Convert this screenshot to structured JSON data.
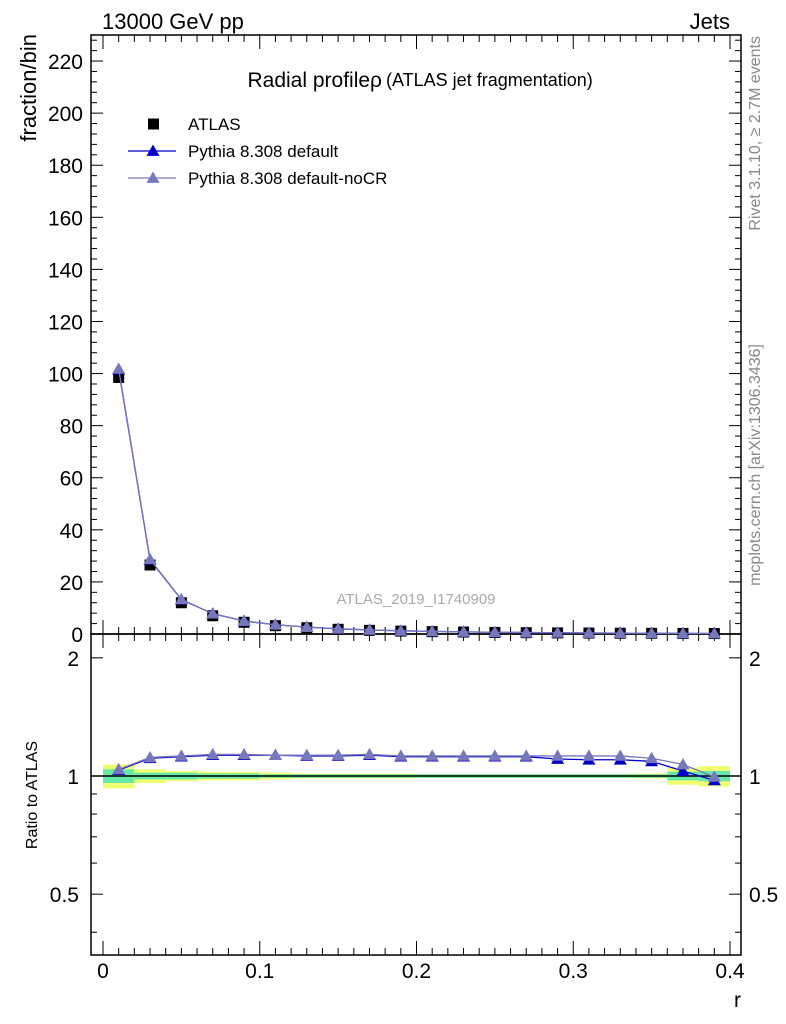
{
  "header": {
    "left": "13000 GeV pp",
    "right": "Jets"
  },
  "side_labels": {
    "rivet": "Rivet 3.1.10, ≥ 2.7M events",
    "mcplots": "mcplots.cern.ch [arXiv:1306.3436]"
  },
  "chart_data": [
    {
      "type": "scatter",
      "panel": "main",
      "title": "Radial profileρ",
      "subtitle": "(ATLAS jet fragmentation)",
      "watermark": "ATLAS_2019_I1740909",
      "xlabel": "r",
      "ylabel": "fraction/bin",
      "xlim": [
        0,
        0.4
      ],
      "ylim": [
        0,
        230
      ],
      "yticks": [
        0,
        20,
        40,
        60,
        80,
        100,
        120,
        140,
        160,
        180,
        200,
        220
      ],
      "xticks": [
        0,
        0.1,
        0.2,
        0.3,
        0.4
      ],
      "legend_position": "top-left",
      "x": [
        0.01,
        0.03,
        0.05,
        0.07,
        0.09,
        0.11,
        0.13,
        0.15,
        0.17,
        0.19,
        0.21,
        0.23,
        0.25,
        0.27,
        0.29,
        0.31,
        0.33,
        0.35,
        0.37,
        0.39
      ],
      "series": [
        {
          "name": "ATLAS",
          "marker": "square",
          "color": "#000000",
          "values": [
            98.5,
            26.5,
            12.0,
            7.0,
            4.5,
            3.2,
            2.4,
            1.8,
            1.4,
            1.1,
            0.9,
            0.75,
            0.6,
            0.5,
            0.42,
            0.36,
            0.3,
            0.26,
            0.22,
            0.18
          ]
        },
        {
          "name": "Pythia 8.308 default",
          "marker": "triangle",
          "color": "#0000cc",
          "values": [
            101.5,
            28.5,
            13.2,
            7.8,
            5.0,
            3.55,
            2.65,
            2.0,
            1.56,
            1.22,
            1.0,
            0.83,
            0.66,
            0.55,
            0.46,
            0.39,
            0.33,
            0.28,
            0.23,
            0.18
          ]
        },
        {
          "name": "Pythia 8.308 default-noCR",
          "marker": "triangle",
          "color": "#7777bb",
          "values": [
            101.8,
            28.7,
            13.3,
            7.8,
            5.0,
            3.55,
            2.66,
            2.01,
            1.56,
            1.22,
            1.0,
            0.83,
            0.66,
            0.55,
            0.47,
            0.4,
            0.34,
            0.29,
            0.23,
            0.18
          ]
        }
      ]
    },
    {
      "type": "scatter",
      "panel": "ratio",
      "ylabel": "Ratio to ATLAS",
      "xlabel": "r",
      "xlim": [
        0,
        0.4
      ],
      "ylim": [
        0.35,
        2.3
      ],
      "log_y": true,
      "yticks": [
        0.5,
        1,
        2
      ],
      "xticks": [
        0,
        0.1,
        0.2,
        0.3,
        0.4
      ],
      "x": [
        0.01,
        0.03,
        0.05,
        0.07,
        0.09,
        0.11,
        0.13,
        0.15,
        0.17,
        0.19,
        0.21,
        0.23,
        0.25,
        0.27,
        0.29,
        0.31,
        0.33,
        0.35,
        0.37,
        0.39
      ],
      "band_edges": [
        0,
        0.02,
        0.04,
        0.06,
        0.08,
        0.1,
        0.12,
        0.14,
        0.16,
        0.18,
        0.2,
        0.22,
        0.24,
        0.26,
        0.28,
        0.3,
        0.32,
        0.34,
        0.36,
        0.38,
        0.4
      ],
      "band_inner": [
        0.04,
        0.02,
        0.02,
        0.015,
        0.015,
        0.01,
        0.01,
        0.01,
        0.01,
        0.01,
        0.01,
        0.01,
        0.01,
        0.01,
        0.01,
        0.01,
        0.01,
        0.01,
        0.025,
        0.03
      ],
      "band_outer": [
        0.07,
        0.04,
        0.03,
        0.025,
        0.025,
        0.02,
        0.015,
        0.015,
        0.015,
        0.015,
        0.012,
        0.012,
        0.012,
        0.012,
        0.012,
        0.012,
        0.012,
        0.015,
        0.05,
        0.06
      ],
      "band_colors": {
        "inner": "#66e8a8",
        "outer": "#f0ff70"
      },
      "reference_line": {
        "value": 1,
        "color": "#000000"
      },
      "series": [
        {
          "name": "Pythia 8.308 default",
          "marker": "triangle",
          "color": "#0000cc",
          "values": [
            1.035,
            1.11,
            1.12,
            1.13,
            1.13,
            1.13,
            1.125,
            1.125,
            1.13,
            1.12,
            1.12,
            1.12,
            1.12,
            1.12,
            1.105,
            1.1,
            1.1,
            1.09,
            1.03,
            0.975
          ]
        },
        {
          "name": "Pythia 8.308 default-noCR",
          "marker": "triangle",
          "color": "#7777bb",
          "values": [
            1.04,
            1.115,
            1.125,
            1.135,
            1.135,
            1.13,
            1.13,
            1.13,
            1.135,
            1.125,
            1.125,
            1.125,
            1.125,
            1.125,
            1.125,
            1.125,
            1.125,
            1.11,
            1.07,
            0.995
          ]
        }
      ]
    }
  ]
}
